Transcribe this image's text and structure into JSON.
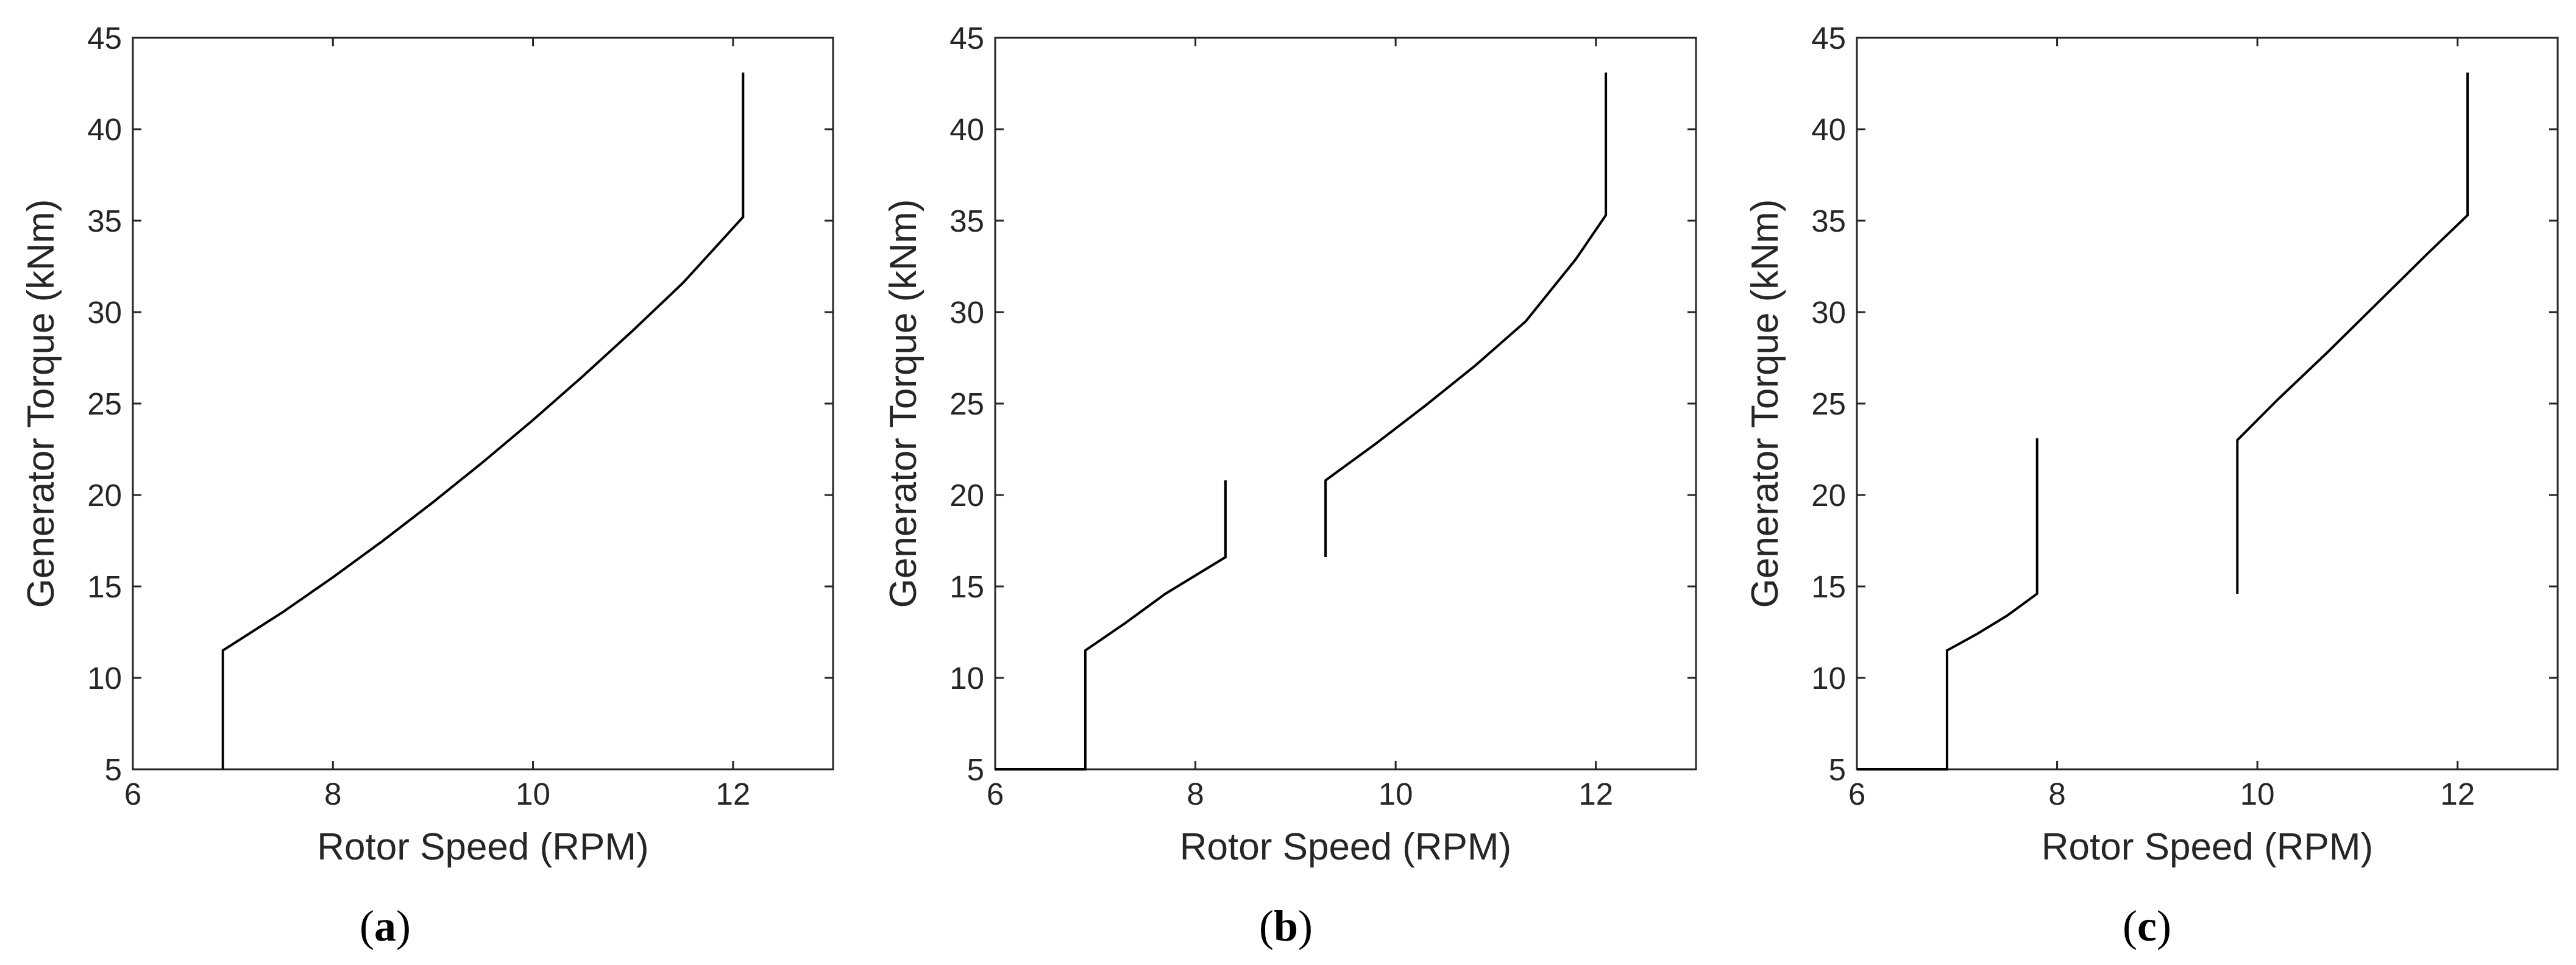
{
  "chart_data": [
    {
      "type": "line",
      "panel_label": "a",
      "xlabel": "Rotor Speed (RPM)",
      "ylabel": "Generator Torque (kNm)",
      "xlim": [
        6,
        13
      ],
      "ylim": [
        5,
        45
      ],
      "xticks": [
        6,
        8,
        10,
        12
      ],
      "yticks": [
        5,
        10,
        15,
        20,
        25,
        30,
        35,
        40,
        45
      ],
      "grid": false,
      "line_color": "#000000",
      "segments": [
        {
          "x": [
            6.9,
            6.9,
            7.5,
            8.0,
            8.5,
            9.0,
            9.5,
            10.0,
            10.5,
            11.0,
            11.5,
            12.1,
            12.1
          ],
          "y": [
            5.0,
            11.5,
            13.6,
            15.5,
            17.5,
            19.6,
            21.8,
            24.1,
            26.5,
            29.0,
            31.6,
            35.2,
            43.1
          ]
        }
      ]
    },
    {
      "type": "line",
      "panel_label": "b",
      "xlabel": "Rotor Speed (RPM)",
      "ylabel": "Generator Torque (kNm)",
      "xlim": [
        6,
        13
      ],
      "ylim": [
        5,
        45
      ],
      "xticks": [
        6,
        8,
        10,
        12
      ],
      "yticks": [
        5,
        10,
        15,
        20,
        25,
        30,
        35,
        40,
        45
      ],
      "grid": false,
      "line_color": "#000000",
      "segments": [
        {
          "x": [
            6.0,
            6.9,
            6.9,
            7.3,
            7.7,
            8.0,
            8.3,
            8.3
          ],
          "y": [
            5.0,
            5.0,
            11.5,
            13.0,
            14.6,
            15.6,
            16.6,
            20.8
          ]
        },
        {
          "x": [
            9.3,
            9.3,
            9.8,
            10.3,
            10.8,
            11.3,
            11.8,
            12.1,
            12.1
          ],
          "y": [
            16.6,
            20.8,
            22.8,
            24.9,
            27.1,
            29.5,
            32.9,
            35.3,
            43.1
          ]
        }
      ]
    },
    {
      "type": "line",
      "panel_label": "c",
      "xlabel": "Rotor Speed (RPM)",
      "ylabel": "Generator Torque (kNm)",
      "xlim": [
        6,
        13
      ],
      "ylim": [
        5,
        45
      ],
      "xticks": [
        6,
        8,
        10,
        12
      ],
      "yticks": [
        5,
        10,
        15,
        20,
        25,
        30,
        35,
        40,
        45
      ],
      "grid": false,
      "line_color": "#000000",
      "segments": [
        {
          "x": [
            6.0,
            6.9,
            6.9,
            7.2,
            7.5,
            7.8,
            7.8
          ],
          "y": [
            5.0,
            5.0,
            11.5,
            12.4,
            13.4,
            14.6,
            23.1
          ]
        },
        {
          "x": [
            9.8,
            9.8,
            10.2,
            10.7,
            11.2,
            11.7,
            12.1,
            12.1
          ],
          "y": [
            14.6,
            23.0,
            25.2,
            27.8,
            30.5,
            33.2,
            35.3,
            43.1
          ]
        }
      ]
    }
  ]
}
